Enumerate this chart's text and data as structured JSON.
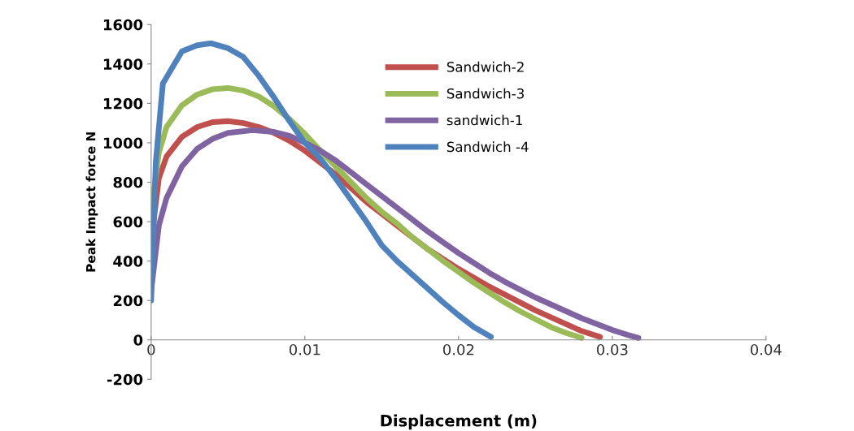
{
  "chart_data": {
    "type": "line",
    "xlabel": "Displacement (m)",
    "ylabel": "Peak Impact force N",
    "xlim": [
      0,
      0.04
    ],
    "xticks": [
      0,
      0.01,
      0.02,
      0.03,
      0.04
    ],
    "ylim": [
      -200,
      1600
    ],
    "yticks": [
      -200,
      0,
      200,
      400,
      600,
      800,
      1000,
      1200,
      1400,
      1600
    ],
    "grid": false,
    "legend": "top",
    "marker": "none",
    "line_style": "solid",
    "series": [
      {
        "name": "Sandwich-2",
        "color": "#c0504d",
        "x": [
          0,
          0.0005,
          0.001,
          0.002,
          0.003,
          0.004,
          0.005,
          0.006,
          0.007,
          0.008,
          0.009,
          0.01,
          0.011,
          0.012,
          0.013,
          0.014,
          0.015,
          0.016,
          0.017,
          0.018,
          0.019,
          0.02,
          0.021,
          0.022,
          0.023,
          0.024,
          0.025,
          0.026,
          0.027,
          0.028,
          0.0292
        ],
        "values": [
          500,
          820,
          930,
          1030,
          1080,
          1105,
          1110,
          1100,
          1080,
          1050,
          1010,
          960,
          900,
          840,
          770,
          700,
          640,
          580,
          520,
          460,
          410,
          360,
          315,
          270,
          230,
          190,
          150,
          115,
          80,
          45,
          15
        ]
      },
      {
        "name": "Sandwich-3",
        "color": "#9bbb59",
        "x": [
          0,
          0.0005,
          0.001,
          0.002,
          0.003,
          0.004,
          0.005,
          0.006,
          0.007,
          0.008,
          0.009,
          0.01,
          0.011,
          0.012,
          0.013,
          0.014,
          0.015,
          0.016,
          0.017,
          0.018,
          0.019,
          0.02,
          0.021,
          0.022,
          0.023,
          0.024,
          0.025,
          0.026,
          0.027,
          0.028
        ],
        "values": [
          650,
          950,
          1080,
          1190,
          1245,
          1272,
          1278,
          1265,
          1235,
          1185,
          1120,
          1045,
          960,
          880,
          800,
          720,
          650,
          590,
          520,
          460,
          400,
          345,
          290,
          240,
          190,
          145,
          105,
          65,
          35,
          10
        ]
      },
      {
        "name": "sandwich-1",
        "color": "#8064a2",
        "x": [
          0,
          0.0005,
          0.001,
          0.002,
          0.003,
          0.004,
          0.005,
          0.0066,
          0.008,
          0.009,
          0.01,
          0.011,
          0.012,
          0.013,
          0.014,
          0.015,
          0.016,
          0.017,
          0.018,
          0.019,
          0.02,
          0.021,
          0.022,
          0.023,
          0.024,
          0.025,
          0.026,
          0.027,
          0.028,
          0.029,
          0.03,
          0.031,
          0.0317
        ],
        "values": [
          250,
          580,
          720,
          880,
          970,
          1020,
          1050,
          1064,
          1055,
          1035,
          1000,
          960,
          910,
          850,
          790,
          730,
          670,
          610,
          550,
          495,
          440,
          390,
          340,
          295,
          255,
          215,
          180,
          145,
          110,
          80,
          50,
          25,
          10
        ]
      },
      {
        "name": "Sandwich -4",
        "color": "#4f81bd",
        "x": [
          0,
          0.0003,
          0.00076,
          0.002,
          0.003,
          0.0039,
          0.005,
          0.006,
          0.007,
          0.008,
          0.009,
          0.01,
          0.011,
          0.012,
          0.013,
          0.014,
          0.015,
          0.016,
          0.017,
          0.018,
          0.019,
          0.02,
          0.021,
          0.0221
        ],
        "values": [
          200,
          900,
          1300,
          1464,
          1495,
          1505,
          1480,
          1435,
          1340,
          1229,
          1110,
          1000,
          920,
          820,
          710,
          600,
          480,
          400,
          330,
          260,
          190,
          125,
          65,
          15
        ]
      }
    ]
  }
}
